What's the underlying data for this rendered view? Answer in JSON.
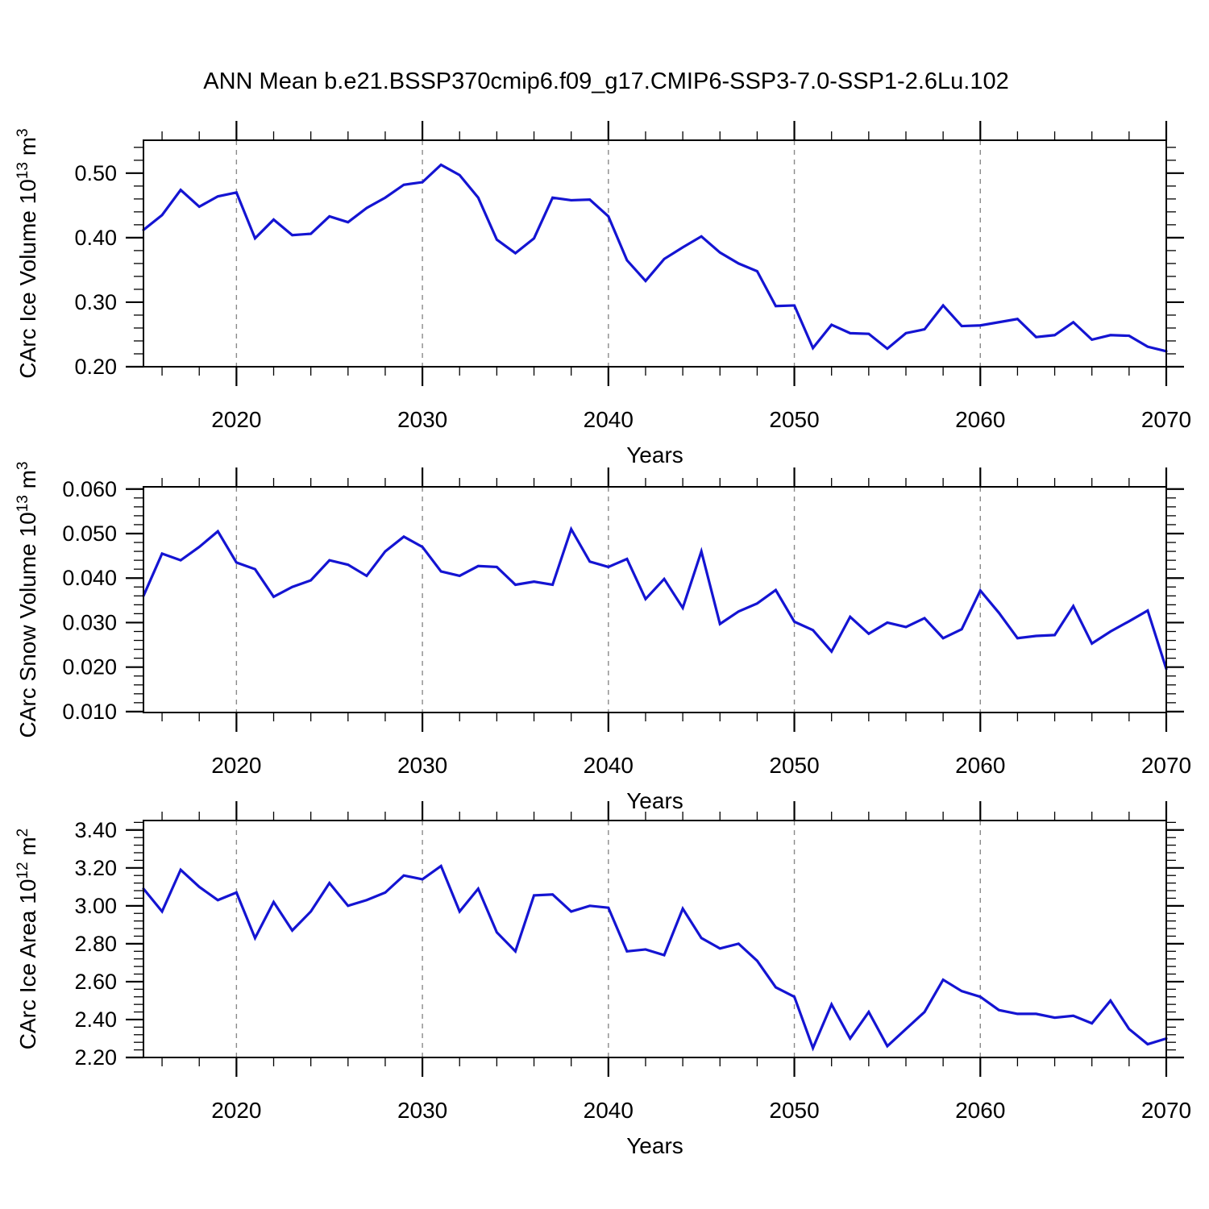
{
  "title": "ANN Mean b.e21.BSSP370cmip6.f09_g17.CMIP6-SSP3-7.0-SSP1-2.6Lu.102",
  "line_color": "#1414d2",
  "grid_color": "#8a8a8a",
  "years": [
    2015,
    2016,
    2017,
    2018,
    2019,
    2020,
    2021,
    2022,
    2023,
    2024,
    2025,
    2026,
    2027,
    2028,
    2029,
    2030,
    2031,
    2032,
    2033,
    2034,
    2035,
    2036,
    2037,
    2038,
    2039,
    2040,
    2041,
    2042,
    2043,
    2044,
    2045,
    2046,
    2047,
    2048,
    2049,
    2050,
    2051,
    2052,
    2053,
    2054,
    2055,
    2056,
    2057,
    2058,
    2059,
    2060,
    2061,
    2062,
    2063,
    2064,
    2065,
    2066,
    2067,
    2068,
    2069,
    2070
  ],
  "chart_data": [
    {
      "type": "line",
      "name": "carc-ice-volume",
      "ylabel_text": "CArc Ice Volume 10^13 m^3",
      "ylabel_parts": [
        {
          "t": "CArc Ice Volume 10"
        },
        {
          "t": "13",
          "sup": true
        },
        {
          "t": " m"
        },
        {
          "t": "3",
          "sup": true
        }
      ],
      "xlabel": "Years",
      "xlim": [
        2015,
        2070
      ],
      "ylim": [
        0.2,
        0.551
      ],
      "x_major_values": [
        2020,
        2030,
        2040,
        2050,
        2060,
        2070
      ],
      "x_major_labels": [
        "2020",
        "2030",
        "2040",
        "2050",
        "2060",
        "2070"
      ],
      "x_minor_step": 2,
      "y_major_values": [
        0.2,
        0.3,
        0.4,
        0.5
      ],
      "y_major_labels": [
        "0.20",
        "0.30",
        "0.40",
        "0.50"
      ],
      "y_minor_step": 0.02,
      "grid": "vertical dashed lines at decades",
      "legend": "none",
      "values": [
        0.412,
        0.435,
        0.474,
        0.448,
        0.464,
        0.47,
        0.399,
        0.428,
        0.404,
        0.406,
        0.433,
        0.424,
        0.446,
        0.462,
        0.482,
        0.486,
        0.513,
        0.497,
        0.462,
        0.397,
        0.376,
        0.399,
        0.462,
        0.458,
        0.459,
        0.433,
        0.365,
        0.333,
        0.367,
        0.385,
        0.402,
        0.377,
        0.36,
        0.348,
        0.294,
        0.295,
        0.229,
        0.265,
        0.252,
        0.251,
        0.228,
        0.252,
        0.258,
        0.295,
        0.263,
        0.264,
        0.269,
        0.274,
        0.246,
        0.249,
        0.269,
        0.242,
        0.249,
        0.248,
        0.231,
        0.224
      ]
    },
    {
      "type": "line",
      "name": "carc-snow-volume",
      "ylabel_text": "CArc Snow Volume 10^13 m^3",
      "ylabel_parts": [
        {
          "t": "CArc Snow Volume 10"
        },
        {
          "t": "13",
          "sup": true
        },
        {
          "t": " m"
        },
        {
          "t": "3",
          "sup": true
        }
      ],
      "xlabel": "Years",
      "xlim": [
        2015,
        2070
      ],
      "ylim": [
        0.0098,
        0.0605
      ],
      "x_major_values": [
        2020,
        2030,
        2040,
        2050,
        2060,
        2070
      ],
      "x_major_labels": [
        "2020",
        "2030",
        "2040",
        "2050",
        "2060",
        "2070"
      ],
      "x_minor_step": 2,
      "y_major_values": [
        0.01,
        0.02,
        0.03,
        0.04,
        0.05,
        0.06
      ],
      "y_major_labels": [
        "0.010",
        "0.020",
        "0.030",
        "0.040",
        "0.050",
        "0.060"
      ],
      "y_minor_step": 0.002,
      "grid": "vertical dashed lines at decades",
      "legend": "none",
      "values": [
        0.036,
        0.0455,
        0.044,
        0.047,
        0.0505,
        0.0435,
        0.042,
        0.0358,
        0.038,
        0.0395,
        0.044,
        0.043,
        0.0405,
        0.046,
        0.0493,
        0.047,
        0.0415,
        0.0405,
        0.0427,
        0.0425,
        0.0385,
        0.0392,
        0.0385,
        0.051,
        0.0437,
        0.0425,
        0.0443,
        0.0353,
        0.0398,
        0.0333,
        0.046,
        0.0297,
        0.0325,
        0.0343,
        0.0373,
        0.0302,
        0.0283,
        0.0235,
        0.0313,
        0.0275,
        0.03,
        0.029,
        0.031,
        0.0265,
        0.0285,
        0.0372,
        0.0322,
        0.0265,
        0.027,
        0.0272,
        0.0337,
        0.0253,
        0.028,
        0.0303,
        0.0327,
        0.0196
      ]
    },
    {
      "type": "line",
      "name": "carc-ice-area",
      "ylabel_text": "CArc Ice Area 10^12 m^2",
      "ylabel_parts": [
        {
          "t": "CArc Ice Area 10"
        },
        {
          "t": "12",
          "sup": true
        },
        {
          "t": " m"
        },
        {
          "t": "2",
          "sup": true
        }
      ],
      "xlabel": "Years",
      "xlim": [
        2015,
        2070
      ],
      "ylim": [
        2.2,
        3.45
      ],
      "x_major_values": [
        2020,
        2030,
        2040,
        2050,
        2060,
        2070
      ],
      "x_major_labels": [
        "2020",
        "2030",
        "2040",
        "2050",
        "2060",
        "2070"
      ],
      "x_minor_step": 2,
      "y_major_values": [
        2.2,
        2.4,
        2.6,
        2.8,
        3.0,
        3.2,
        3.4
      ],
      "y_major_labels": [
        "2.20",
        "2.40",
        "2.60",
        "2.80",
        "3.00",
        "3.20",
        "3.40"
      ],
      "y_minor_step": 0.04,
      "grid": "vertical dashed lines at decades",
      "legend": "none",
      "values": [
        3.09,
        2.97,
        3.19,
        3.1,
        3.03,
        3.07,
        2.83,
        3.02,
        2.87,
        2.97,
        3.12,
        3.0,
        3.03,
        3.07,
        3.16,
        3.14,
        3.21,
        2.97,
        3.09,
        2.86,
        2.76,
        3.055,
        3.06,
        2.97,
        3.0,
        2.99,
        2.76,
        2.77,
        2.74,
        2.985,
        2.83,
        2.775,
        2.8,
        2.71,
        2.57,
        2.52,
        2.25,
        2.48,
        2.3,
        2.44,
        2.26,
        2.35,
        2.44,
        2.61,
        2.55,
        2.52,
        2.45,
        2.43,
        2.43,
        2.41,
        2.42,
        2.38,
        2.5,
        2.35,
        2.27,
        2.3
      ]
    }
  ]
}
